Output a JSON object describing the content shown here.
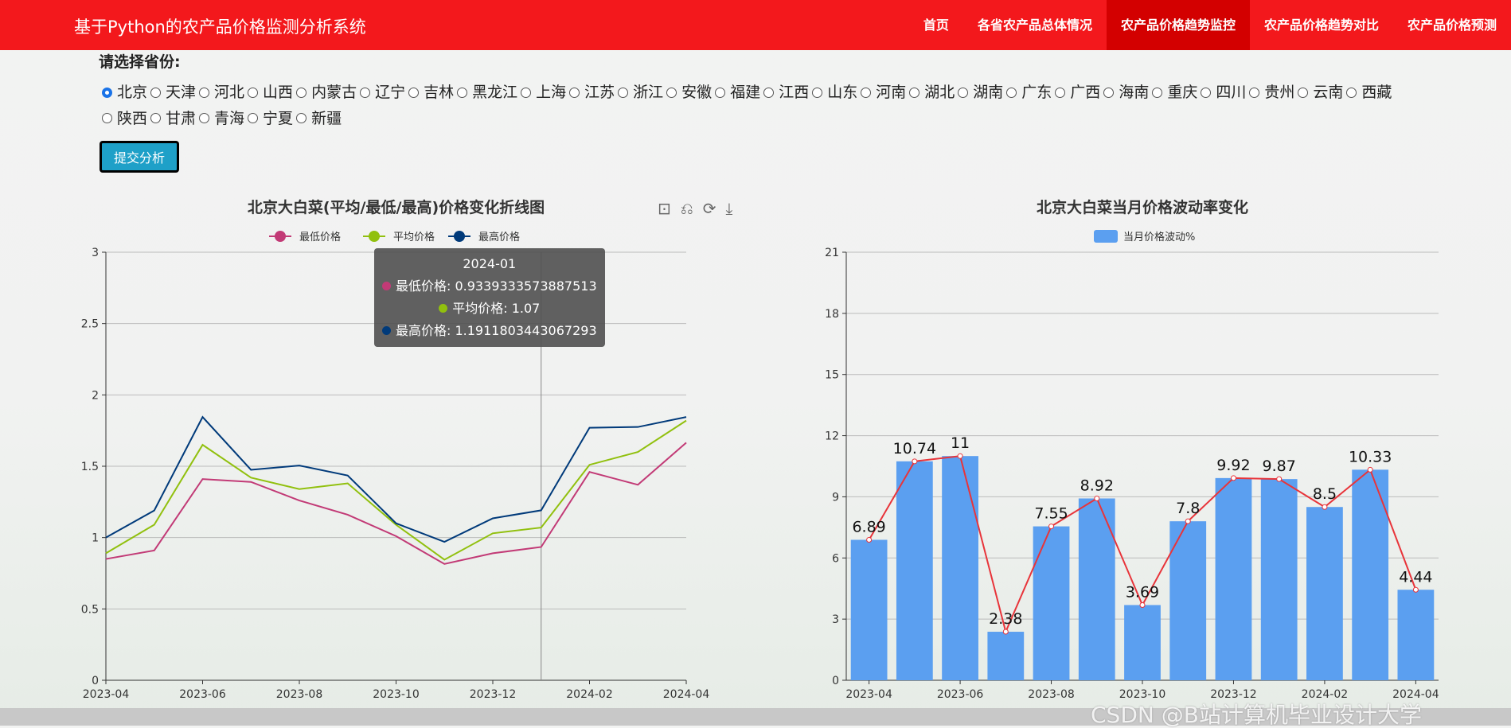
{
  "header": {
    "title": "基于Python的农产品价格监测分析系统",
    "nav": [
      {
        "label": "首页",
        "active": false
      },
      {
        "label": "各省农产品总体情况",
        "active": false
      },
      {
        "label": "农产品价格趋势监控",
        "active": true
      },
      {
        "label": "农产品价格趋势对比",
        "active": false
      },
      {
        "label": "农产品价格预测",
        "active": false
      }
    ]
  },
  "form": {
    "label": "请选择省份:",
    "selected": "北京",
    "provinces": [
      "北京",
      "天津",
      "河北",
      "山西",
      "内蒙古",
      "辽宁",
      "吉林",
      "黑龙江",
      "上海",
      "江苏",
      "浙江",
      "安徽",
      "福建",
      "江西",
      "山东",
      "河南",
      "湖北",
      "湖南",
      "广东",
      "广西",
      "海南",
      "重庆",
      "四川",
      "贵州",
      "云南",
      "西藏",
      "陕西",
      "甘肃",
      "青海",
      "宁夏",
      "新疆"
    ],
    "submit_label": "提交分析"
  },
  "toolbox": [
    "zoom-icon",
    "zoom-reset-icon",
    "restore-icon",
    "download-icon"
  ],
  "tooltip": {
    "title": "2024-01",
    "rows": [
      {
        "text": "最低价格: 0.9339333573887513",
        "color": "#c23a76"
      },
      {
        "text": "平均价格: 1.07",
        "color": "#91c00e"
      },
      {
        "text": "最高价格: 1.1911803443067293",
        "color": "#003a7a"
      }
    ]
  },
  "watermark": "CSDN @B站计算机毕业设计大学",
  "chart_data": [
    {
      "type": "line",
      "title": "北京大白菜(平均/最低/最高)价格变化折线图",
      "x": [
        "2023-04",
        "2023-05",
        "2023-06",
        "2023-07",
        "2023-08",
        "2023-09",
        "2023-10",
        "2023-11",
        "2023-12",
        "2024-01",
        "2024-02",
        "2024-03",
        "2024-04"
      ],
      "xticks": [
        "2023-04",
        "2023-06",
        "2023-08",
        "2023-10",
        "2023-12",
        "2024-02",
        "2024-04"
      ],
      "ylim": [
        0,
        3
      ],
      "yticks": [
        "0",
        "0.5",
        "1",
        "1.5",
        "2",
        "2.5",
        "3"
      ],
      "grid": true,
      "legend": "top",
      "series": [
        {
          "name": "最低价格",
          "color": "#c23a76",
          "values": [
            0.85,
            0.91,
            1.41,
            1.39,
            1.26,
            1.16,
            1.01,
            0.815,
            0.89,
            0.934,
            1.46,
            1.37,
            1.665
          ]
        },
        {
          "name": "平均价格",
          "color": "#91c00e",
          "values": [
            0.89,
            1.09,
            1.65,
            1.42,
            1.34,
            1.38,
            1.09,
            0.845,
            1.03,
            1.07,
            1.51,
            1.6,
            1.82
          ]
        },
        {
          "name": "最高价格",
          "color": "#003a7a",
          "values": [
            1.0,
            1.19,
            1.845,
            1.475,
            1.505,
            1.435,
            1.1,
            0.97,
            1.135,
            1.191,
            1.77,
            1.775,
            1.845
          ]
        }
      ]
    },
    {
      "type": "bar",
      "title": "北京大白菜当月价格波动率变化",
      "x": [
        "2023-04",
        "2023-05",
        "2023-06",
        "2023-07",
        "2023-08",
        "2023-09",
        "2023-10",
        "2023-11",
        "2023-12",
        "2024-01",
        "2024-02",
        "2024-03",
        "2024-04"
      ],
      "xticks": [
        "2023-04",
        "2023-06",
        "2023-08",
        "2023-10",
        "2023-12",
        "2024-02",
        "2024-04"
      ],
      "ylim": [
        0,
        21
      ],
      "yticks": [
        "0",
        "3",
        "6",
        "9",
        "12",
        "15",
        "18",
        "21"
      ],
      "grid": true,
      "legend": "top",
      "series": [
        {
          "name": "当月价格波动%",
          "color": "#5b9ff0",
          "values": [
            6.89,
            10.74,
            11,
            2.38,
            7.55,
            8.92,
            3.69,
            7.8,
            9.92,
            9.87,
            8.5,
            10.33,
            4.44
          ],
          "labels": [
            "6.89",
            "10.74",
            "11",
            "2.38",
            "7.55",
            "8.92",
            "3.69",
            "7.8",
            "9.92",
            "9.87",
            "8.5",
            "10.33",
            "4.44"
          ]
        }
      ],
      "line_color": "#e8343a"
    }
  ]
}
